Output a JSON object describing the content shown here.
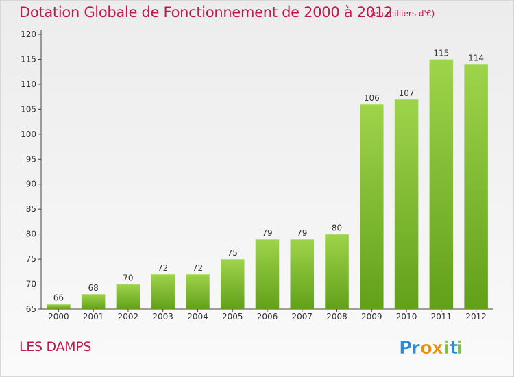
{
  "header": {
    "title": "Dotation Globale de Fonctionnement de 2000 à 2012",
    "subtitle": "(en milliers d'€)"
  },
  "footer": {
    "commune": "LES DAMPS",
    "logo_text": "Proxiti"
  },
  "colors": {
    "title": "#c0184c",
    "bar_light": "#9ed44a",
    "bar_dark": "#62a01a",
    "axis": "#444444",
    "logo_p": "#2d8bd6",
    "logo_r": "#2d8bd6",
    "logo_o": "#f08c00",
    "logo_x": "#f08c00",
    "logo_i": "#7cc243",
    "logo_t": "#2d8bd6"
  },
  "chart_data": {
    "type": "bar",
    "title": "Dotation Globale de Fonctionnement de 2000 à 2012",
    "subtitle": "(en milliers d'€)",
    "categories": [
      "2000",
      "2001",
      "2002",
      "2003",
      "2004",
      "2005",
      "2006",
      "2007",
      "2008",
      "2009",
      "2010",
      "2011",
      "2012"
    ],
    "values": [
      66,
      68,
      70,
      72,
      72,
      75,
      79,
      79,
      80,
      106,
      107,
      115,
      114
    ],
    "xlabel": "",
    "ylabel": "",
    "ylim": [
      65,
      120
    ],
    "yticks": [
      65,
      70,
      75,
      80,
      85,
      90,
      95,
      100,
      105,
      110,
      115,
      120
    ],
    "grid": false,
    "data_labels": true
  }
}
